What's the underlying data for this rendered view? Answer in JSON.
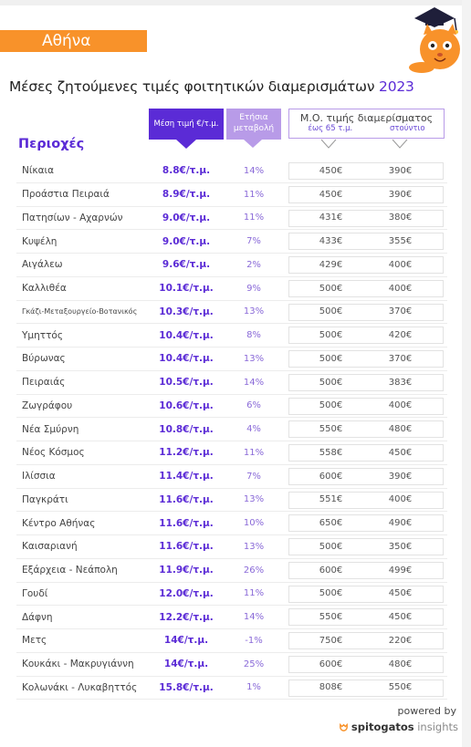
{
  "header": {
    "city": "Αθήνα",
    "title_main": "Μέσες ζητούμενες τιμές φοιτητικών διαμερισμάτων",
    "title_year": "2023"
  },
  "columns": {
    "avg_price": "Μέση τιμή €/τ.μ.",
    "yearly_change_line1": "Ετήσια",
    "yearly_change_line2": "μεταβολή",
    "avg_apartment": "Μ.Ο. τιμής διαμερίσματος",
    "up_to_65": "έως 65 τ.μ.",
    "studio": "στούντιο",
    "regions": "Περιοχές"
  },
  "rows": [
    {
      "area": "Νίκαια",
      "price": "8.8€/τ.μ.",
      "change": "14%",
      "avg65": "450€",
      "studio": "390€"
    },
    {
      "area": "Προάστια Πειραιά",
      "price": "8.9€/τ.μ.",
      "change": "11%",
      "avg65": "450€",
      "studio": "390€"
    },
    {
      "area": "Πατησίων - Αχαρνών",
      "price": "9.0€/τ.μ.",
      "change": "11%",
      "avg65": "431€",
      "studio": "380€"
    },
    {
      "area": "Κυψέλη",
      "price": "9.0€/τ.μ.",
      "change": "7%",
      "avg65": "433€",
      "studio": "355€"
    },
    {
      "area": "Αιγάλεω",
      "price": "9.6€/τ.μ.",
      "change": "2%",
      "avg65": "429€",
      "studio": "400€"
    },
    {
      "area": "Καλλιθέα",
      "price": "10.1€/τ.μ.",
      "change": "9%",
      "avg65": "500€",
      "studio": "400€"
    },
    {
      "area": "Γκάζι-Μεταξουργείο-Βοτανικός",
      "price": "10.3€/τ.μ.",
      "change": "13%",
      "avg65": "500€",
      "studio": "370€"
    },
    {
      "area": "Υμηττός",
      "price": "10.4€/τ.μ.",
      "change": "8%",
      "avg65": "500€",
      "studio": "420€"
    },
    {
      "area": "Βύρωνας",
      "price": "10.4€/τ.μ.",
      "change": "13%",
      "avg65": "500€",
      "studio": "370€"
    },
    {
      "area": "Πειραιάς",
      "price": "10.5€/τ.μ.",
      "change": "14%",
      "avg65": "500€",
      "studio": "383€"
    },
    {
      "area": "Ζωγράφου",
      "price": "10.6€/τ.μ.",
      "change": "6%",
      "avg65": "500€",
      "studio": "400€"
    },
    {
      "area": "Νέα Σμύρνη",
      "price": "10.8€/τ.μ.",
      "change": "4%",
      "avg65": "550€",
      "studio": "480€"
    },
    {
      "area": "Νέος Κόσμος",
      "price": "11.2€/τ.μ.",
      "change": "11%",
      "avg65": "558€",
      "studio": "450€"
    },
    {
      "area": "Ιλίσσια",
      "price": "11.4€/τ.μ.",
      "change": "7%",
      "avg65": "600€",
      "studio": "390€"
    },
    {
      "area": "Παγκράτι",
      "price": "11.6€/τ.μ.",
      "change": "13%",
      "avg65": "551€",
      "studio": "400€"
    },
    {
      "area": "Κέντρο Αθήνας",
      "price": "11.6€/τ.μ.",
      "change": "10%",
      "avg65": "650€",
      "studio": "490€"
    },
    {
      "area": "Καισαριανή",
      "price": "11.6€/τ.μ.",
      "change": "13%",
      "avg65": "500€",
      "studio": "350€"
    },
    {
      "area": "Εξάρχεια - Νεάπολη",
      "price": "11.9€/τ.μ.",
      "change": "26%",
      "avg65": "600€",
      "studio": "499€"
    },
    {
      "area": "Γουδί",
      "price": "12.0€/τ.μ.",
      "change": "11%",
      "avg65": "500€",
      "studio": "450€"
    },
    {
      "area": "Δάφνη",
      "price": "12.2€/τ.μ.",
      "change": "14%",
      "avg65": "550€",
      "studio": "450€"
    },
    {
      "area": "Μετς",
      "price": "14€/τ.μ.",
      "change": "-1%",
      "avg65": "750€",
      "studio": "220€"
    },
    {
      "area": "Κουκάκι - Μακρυγιάννη",
      "price": "14€/τ.μ.",
      "change": "25%",
      "avg65": "600€",
      "studio": "480€"
    },
    {
      "area": "Κολωνάκι - Λυκαβηττός",
      "price": "15.8€/τ.μ.",
      "change": "1%",
      "avg65": "808€",
      "studio": "550€"
    }
  ],
  "footer": {
    "powered_by": "powered by",
    "brand_bold": "spitogatos",
    "brand_light": "insights"
  },
  "colors": {
    "accent_purple": "#5b2bd6",
    "light_purple": "#b89be8",
    "orange": "#f8922a"
  }
}
